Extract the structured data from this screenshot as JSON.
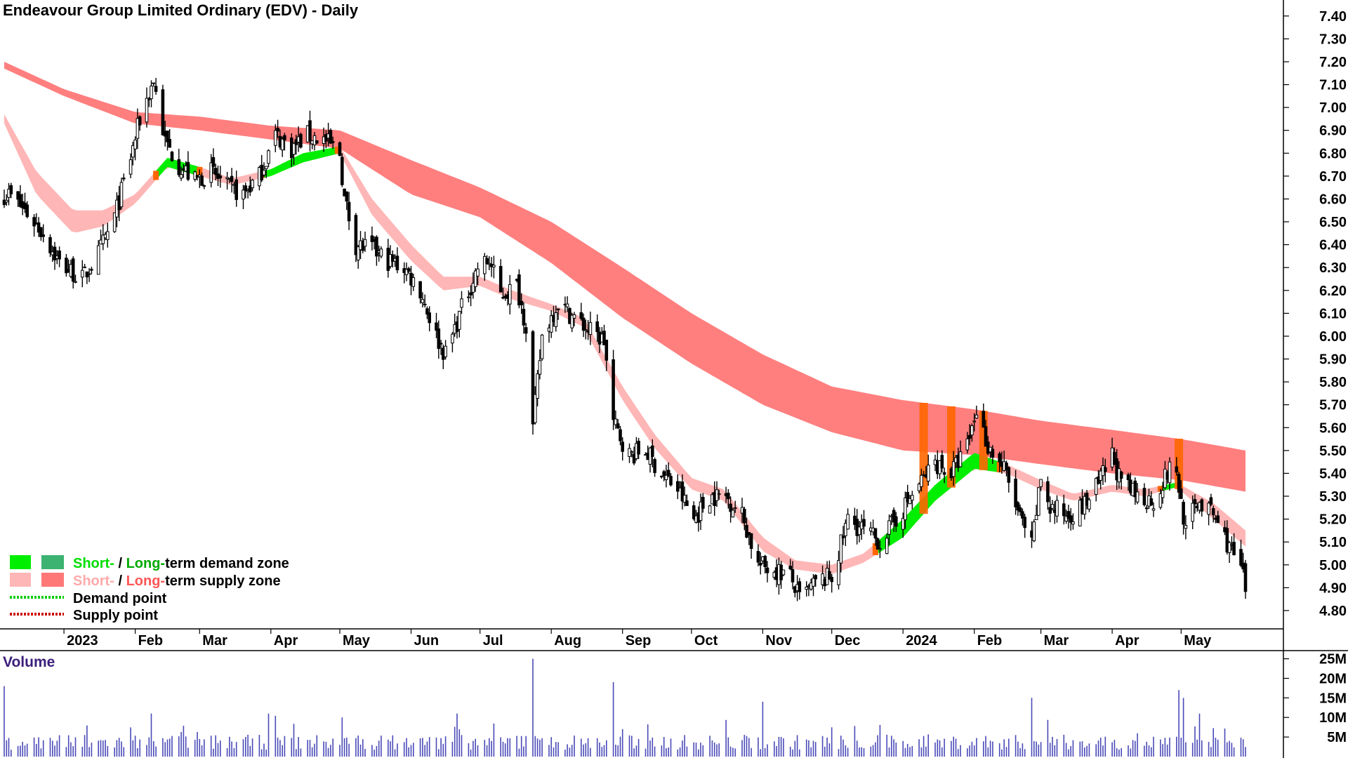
{
  "chart_data": {
    "type": "candlestick",
    "title": "Endeavour Group Limited Ordinary (EDV) - Daily",
    "price_axis": {
      "range": [
        4.72,
        7.47
      ],
      "ticks": [
        "7.40",
        "7.30",
        "7.20",
        "7.10",
        "7.00",
        "6.90",
        "6.80",
        "6.70",
        "6.60",
        "6.50",
        "6.40",
        "6.30",
        "6.20",
        "6.10",
        "6.00",
        "5.90",
        "5.80",
        "5.70",
        "5.60",
        "5.50",
        "5.40",
        "5.30",
        "5.20",
        "5.10",
        "5.00",
        "4.90",
        "4.80"
      ]
    },
    "x_axis": {
      "ticks": [
        "2023",
        "Feb",
        "Mar",
        "Apr",
        "May",
        "Jun",
        "Jul",
        "Aug",
        "Sep",
        "Oct",
        "Nov",
        "Dec",
        "2024",
        "Feb",
        "Mar",
        "Apr",
        "May"
      ],
      "tick_dates": [
        "2023-01-01",
        "2023-02-01",
        "2023-03-01",
        "2023-04-01",
        "2023-05-01",
        "2023-06-01",
        "2023-07-01",
        "2023-08-01",
        "2023-09-01",
        "2023-10-01",
        "2023-11-01",
        "2023-12-01",
        "2024-01-01",
        "2024-02-01",
        "2024-03-01",
        "2024-04-01",
        "2024-05-01"
      ]
    },
    "price_path": [
      [
        "2022-12-08",
        6.62
      ],
      [
        "2022-12-15",
        6.55
      ],
      [
        "2022-12-23",
        6.45
      ],
      [
        "2022-12-30",
        6.32
      ],
      [
        "2023-01-09",
        6.25
      ],
      [
        "2023-01-16",
        6.36
      ],
      [
        "2023-01-23",
        6.52
      ],
      [
        "2023-01-30",
        6.78
      ],
      [
        "2023-02-03",
        6.95
      ],
      [
        "2023-02-09",
        7.12
      ],
      [
        "2023-02-14",
        6.85
      ],
      [
        "2023-02-20",
        6.75
      ],
      [
        "2023-02-27",
        6.68
      ],
      [
        "2023-03-06",
        6.72
      ],
      [
        "2023-03-13",
        6.65
      ],
      [
        "2023-03-20",
        6.62
      ],
      [
        "2023-03-27",
        6.7
      ],
      [
        "2023-04-03",
        6.88
      ],
      [
        "2023-04-10",
        6.82
      ],
      [
        "2023-04-17",
        6.88
      ],
      [
        "2023-04-24",
        6.86
      ],
      [
        "2023-05-01",
        6.8
      ],
      [
        "2023-05-03",
        6.6
      ],
      [
        "2023-05-08",
        6.4
      ],
      [
        "2023-05-15",
        6.38
      ],
      [
        "2023-05-22",
        6.33
      ],
      [
        "2023-05-29",
        6.3
      ],
      [
        "2023-06-05",
        6.2
      ],
      [
        "2023-06-12",
        6.0
      ],
      [
        "2023-06-16",
        5.92
      ],
      [
        "2023-06-23",
        6.12
      ],
      [
        "2023-06-30",
        6.3
      ],
      [
        "2023-07-05",
        6.33
      ],
      [
        "2023-07-10",
        6.18
      ],
      [
        "2023-07-17",
        6.22
      ],
      [
        "2023-07-21",
        6.05
      ],
      [
        "2023-07-24",
        5.6
      ],
      [
        "2023-07-28",
        6.0
      ],
      [
        "2023-08-04",
        6.15
      ],
      [
        "2023-08-11",
        6.08
      ],
      [
        "2023-08-18",
        6.02
      ],
      [
        "2023-08-24",
        5.98
      ],
      [
        "2023-08-28",
        5.62
      ],
      [
        "2023-09-04",
        5.48
      ],
      [
        "2023-09-11",
        5.5
      ],
      [
        "2023-09-18",
        5.4
      ],
      [
        "2023-09-25",
        5.33
      ],
      [
        "2023-10-02",
        5.2
      ],
      [
        "2023-10-09",
        5.3
      ],
      [
        "2023-10-16",
        5.3
      ],
      [
        "2023-10-23",
        5.22
      ],
      [
        "2023-10-30",
        5.0
      ],
      [
        "2023-11-06",
        4.98
      ],
      [
        "2023-11-13",
        4.95
      ],
      [
        "2023-11-17",
        4.85
      ],
      [
        "2023-11-24",
        4.92
      ],
      [
        "2023-12-01",
        4.95
      ],
      [
        "2023-12-04",
        5.05
      ],
      [
        "2023-12-08",
        5.2
      ],
      [
        "2023-12-15",
        5.15
      ],
      [
        "2023-12-22",
        5.1
      ],
      [
        "2023-12-29",
        5.2
      ],
      [
        "2024-01-08",
        5.35
      ],
      [
        "2024-01-15",
        5.45
      ],
      [
        "2024-01-22",
        5.4
      ],
      [
        "2024-01-29",
        5.52
      ],
      [
        "2024-02-02",
        5.68
      ],
      [
        "2024-02-07",
        5.52
      ],
      [
        "2024-02-14",
        5.42
      ],
      [
        "2024-02-21",
        5.2
      ],
      [
        "2024-02-26",
        5.08
      ],
      [
        "2024-03-01",
        5.38
      ],
      [
        "2024-03-05",
        5.25
      ],
      [
        "2024-03-12",
        5.22
      ],
      [
        "2024-03-19",
        5.25
      ],
      [
        "2024-03-26",
        5.35
      ],
      [
        "2024-04-01",
        5.48
      ],
      [
        "2024-04-05",
        5.35
      ],
      [
        "2024-04-12",
        5.3
      ],
      [
        "2024-04-19",
        5.28
      ],
      [
        "2024-04-26",
        5.42
      ],
      [
        "2024-04-29",
        5.4
      ],
      [
        "2024-05-03",
        5.15
      ],
      [
        "2024-05-08",
        5.28
      ],
      [
        "2024-05-15",
        5.22
      ],
      [
        "2024-05-22",
        5.08
      ],
      [
        "2024-05-27",
        4.98
      ],
      [
        "2024-05-29",
        4.9
      ]
    ],
    "candle_range": {
      "start": "2022-12-06",
      "end": "2024-05-29"
    },
    "short_term_zone": [
      [
        "2022-12-06",
        6.97,
        6.93
      ],
      [
        "2022-12-20",
        6.72,
        6.62
      ],
      [
        "2023-01-05",
        6.55,
        6.45
      ],
      [
        "2023-01-18",
        6.55,
        6.48
      ],
      [
        "2023-02-01",
        6.62,
        6.58
      ],
      [
        "2023-02-15",
        6.78,
        6.74
      ],
      [
        "2023-03-01",
        6.74,
        6.7
      ],
      [
        "2023-03-15",
        6.69,
        6.66
      ],
      [
        "2023-04-01",
        6.73,
        6.7
      ],
      [
        "2023-04-15",
        6.8,
        6.76
      ],
      [
        "2023-05-01",
        6.83,
        6.8
      ],
      [
        "2023-05-15",
        6.6,
        6.53
      ],
      [
        "2023-06-01",
        6.4,
        6.33
      ],
      [
        "2023-06-15",
        6.26,
        6.2
      ],
      [
        "2023-07-01",
        6.26,
        6.22
      ],
      [
        "2023-07-15",
        6.2,
        6.16
      ],
      [
        "2023-08-01",
        6.14,
        6.11
      ],
      [
        "2023-08-15",
        6.08,
        6.04
      ],
      [
        "2023-09-01",
        5.78,
        5.72
      ],
      [
        "2023-09-15",
        5.57,
        5.51
      ],
      [
        "2023-10-01",
        5.38,
        5.33
      ],
      [
        "2023-10-15",
        5.33,
        5.28
      ],
      [
        "2023-11-01",
        5.12,
        5.06
      ],
      [
        "2023-11-15",
        5.02,
        4.98
      ],
      [
        "2023-12-01",
        5.0,
        4.96
      ],
      [
        "2023-12-15",
        5.05,
        5.01
      ],
      [
        "2024-01-01",
        5.2,
        5.12
      ],
      [
        "2024-01-15",
        5.35,
        5.28
      ],
      [
        "2024-02-01",
        5.49,
        5.42
      ],
      [
        "2024-02-15",
        5.44,
        5.4
      ],
      [
        "2024-03-01",
        5.37,
        5.33
      ],
      [
        "2024-03-15",
        5.31,
        5.28
      ],
      [
        "2024-04-01",
        5.35,
        5.32
      ],
      [
        "2024-04-15",
        5.33,
        5.3
      ],
      [
        "2024-04-29",
        5.36,
        5.34
      ],
      [
        "2024-05-15",
        5.27,
        5.2
      ],
      [
        "2024-05-29",
        5.15,
        5.08
      ]
    ],
    "short_term_zone_demand_periods": [
      [
        "2023-02-10",
        "2023-03-01"
      ],
      [
        "2023-03-28",
        "2023-04-30"
      ],
      [
        "2023-12-20",
        "2024-02-12"
      ],
      [
        "2024-04-22",
        "2024-04-30"
      ]
    ],
    "long_term_zone": [
      [
        "2022-12-06",
        7.2,
        7.17
      ],
      [
        "2023-01-01",
        7.08,
        7.05
      ],
      [
        "2023-02-01",
        6.98,
        6.93
      ],
      [
        "2023-03-01",
        6.96,
        6.9
      ],
      [
        "2023-04-01",
        6.92,
        6.86
      ],
      [
        "2023-05-01",
        6.9,
        6.82
      ],
      [
        "2023-06-01",
        6.77,
        6.62
      ],
      [
        "2023-07-01",
        6.65,
        6.52
      ],
      [
        "2023-08-01",
        6.5,
        6.32
      ],
      [
        "2023-09-01",
        6.3,
        6.08
      ],
      [
        "2023-10-01",
        6.1,
        5.88
      ],
      [
        "2023-11-01",
        5.92,
        5.7
      ],
      [
        "2023-12-01",
        5.78,
        5.58
      ],
      [
        "2024-01-01",
        5.72,
        5.5
      ],
      [
        "2024-02-01",
        5.68,
        5.48
      ],
      [
        "2024-03-01",
        5.63,
        5.44
      ],
      [
        "2024-04-01",
        5.59,
        5.4
      ],
      [
        "2024-05-01",
        5.55,
        5.37
      ],
      [
        "2024-05-29",
        5.5,
        5.32
      ]
    ],
    "overlap_markers": [
      "2024-01-10",
      "2024-01-22",
      "2024-02-05",
      "2024-04-30"
    ],
    "volume_axis": {
      "range": [
        0,
        26
      ],
      "ticks": [
        "25M",
        "20M",
        "15M",
        "10M",
        "5M"
      ]
    },
    "volume_spikes": [
      [
        "2022-12-06",
        18
      ],
      [
        "2023-02-08",
        11
      ],
      [
        "2023-03-31",
        11
      ],
      [
        "2023-05-02",
        10
      ],
      [
        "2023-06-21",
        11
      ],
      [
        "2023-07-24",
        25
      ],
      [
        "2023-08-28",
        19
      ],
      [
        "2023-11-01",
        14
      ],
      [
        "2024-02-26",
        15
      ],
      [
        "2024-04-30",
        17
      ],
      [
        "2024-05-02",
        15
      ]
    ],
    "volume_baseline": 3.5,
    "legend": [
      {
        "text_a": "Short-",
        "text_b": " / ",
        "text_c": "Long-",
        "text_d": "term demand zone",
        "colors": [
          "#00ee00",
          "#3cb371"
        ]
      },
      {
        "text_a": "Short-",
        "text_b": " / ",
        "text_c": "Long-",
        "text_d": "term supply zone",
        "colors": [
          "#ffb6b6",
          "#ff7878"
        ]
      },
      {
        "text": "Demand point",
        "color": "#00cc00"
      },
      {
        "text": "Supply point",
        "color": "#cc0000"
      }
    ],
    "volume_label": "Volume",
    "colors": {
      "short_supply": "#ffb6b6",
      "long_supply": "#ff7f7f",
      "short_demand": "#00ee00",
      "transition": "#ff6600",
      "candle": "#000000",
      "volume": "#4a4ab8",
      "legend_green": "#00ee00",
      "legend_pink": "#ffaaaa"
    }
  }
}
